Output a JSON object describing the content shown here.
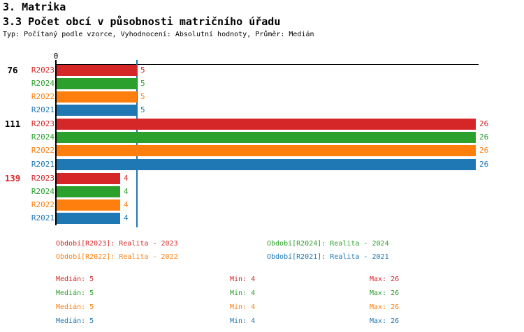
{
  "header": {
    "title": "3. Matrika",
    "subtitle": "3.3 Počet obcí v působnosti matričního úřadu",
    "meta": "Typ: Počítaný podle vzorce, Vyhodnocení: Absolutní hodnoty, Průměr: Medián"
  },
  "axis": {
    "zero_label": "0"
  },
  "chart_data": {
    "type": "bar",
    "orientation": "horizontal",
    "title": "3.3 Počet obcí v působnosti matričního úřadu",
    "categories": [
      "76",
      "111",
      "139"
    ],
    "category_colors": [
      "#000000",
      "#000000",
      "#d62728"
    ],
    "series": [
      {
        "name": "R2023",
        "color": "#d62728",
        "values": [
          5,
          26,
          4
        ]
      },
      {
        "name": "R2024",
        "color": "#2ca02c",
        "values": [
          5,
          26,
          4
        ]
      },
      {
        "name": "R2022",
        "color": "#ff7f0e",
        "values": [
          5,
          26,
          4
        ]
      },
      {
        "name": "R2021",
        "color": "#1f77b4",
        "values": [
          5,
          26,
          4
        ]
      }
    ],
    "xlim": [
      0,
      26.2
    ],
    "x_ticks": [
      0
    ],
    "value_labels": true,
    "grid": false,
    "median_marker": {
      "value": 5,
      "color": "#1f77b4"
    },
    "stats": [
      {
        "series": "R2023",
        "median": 5,
        "min": 4,
        "max": 26
      },
      {
        "series": "R2024",
        "median": 5,
        "min": 4,
        "max": 26
      },
      {
        "series": "R2022",
        "median": 5,
        "min": 4,
        "max": 26
      },
      {
        "series": "R2021",
        "median": 5,
        "min": 4,
        "max": 26
      }
    ]
  },
  "legend": {
    "items": [
      {
        "label": "Období[R2023]: Realita - 2023",
        "color": "#d62728"
      },
      {
        "label": "Období[R2024]: Realita - 2024",
        "color": "#2ca02c"
      },
      {
        "label": "Období[R2022]: Realita - 2022",
        "color": "#ff7f0e"
      },
      {
        "label": "Období[R2021]: Realita - 2021",
        "color": "#1f77b4"
      }
    ]
  },
  "stats_table": {
    "rows": [
      {
        "color": "#d62728",
        "median": "Medián: 5",
        "min": "Min: 4",
        "max": "Max: 26"
      },
      {
        "color": "#2ca02c",
        "median": "Medián: 5",
        "min": "Min: 4",
        "max": "Max: 26"
      },
      {
        "color": "#ff7f0e",
        "median": "Medián: 5",
        "min": "Min: 4",
        "max": "Max: 26"
      },
      {
        "color": "#1f77b4",
        "median": "Medián: 5",
        "min": "Min: 4",
        "max": "Max: 26"
      }
    ]
  },
  "colors": {
    "axis": "#000000",
    "median_line": "#1f77b4",
    "background": "#ffffff"
  }
}
